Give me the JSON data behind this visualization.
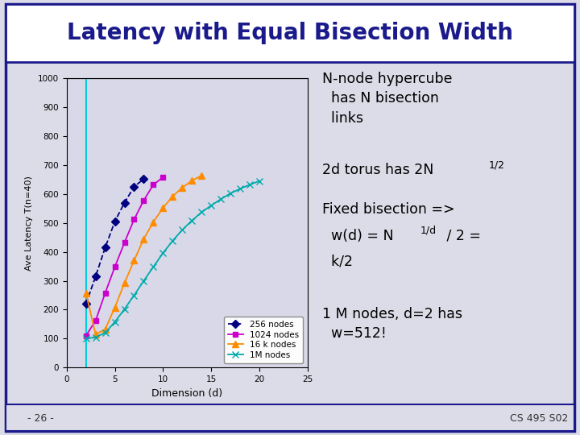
{
  "title": "Latency with Equal Bisection Width",
  "title_color": "#1a1a8c",
  "title_fontsize": 20,
  "bg_color": "#dcdce8",
  "plot_bg_color": "#d8d8e8",
  "border_color": "#1a1a8c",
  "xlabel": "Dimension (d)",
  "ylabel": "Ave Latency T(n=40)",
  "xlim": [
    0,
    25
  ],
  "ylim": [
    0,
    1000
  ],
  "yticks": [
    0,
    100,
    200,
    300,
    400,
    500,
    600,
    700,
    800,
    900,
    1000
  ],
  "xticks": [
    0,
    5,
    10,
    15,
    20,
    25
  ],
  "vline_x": 2,
  "vline_color": "#00ccdd",
  "hline_color": "#909090",
  "footer_left": "- 26 -",
  "footer_right": "CS 495 S02",
  "series": [
    {
      "label": "256 nodes",
      "d": [
        2,
        3,
        4,
        5,
        6,
        7,
        8
      ],
      "T": [
        220,
        315,
        415,
        505,
        570,
        625,
        652
      ],
      "color": "#000080",
      "marker": "D",
      "markersize": 5,
      "linestyle": "--",
      "linewidth": 1.3
    },
    {
      "label": "1024 nodes",
      "d": [
        2,
        3,
        4,
        5,
        6,
        7,
        8,
        9,
        10
      ],
      "T": [
        110,
        162,
        258,
        348,
        432,
        512,
        578,
        632,
        658
      ],
      "color": "#cc00cc",
      "marker": "s",
      "markersize": 5,
      "linestyle": "-",
      "linewidth": 1.3
    },
    {
      "label": "16 k nodes",
      "d": [
        2,
        3,
        4,
        5,
        6,
        7,
        8,
        9,
        10,
        11,
        12,
        13,
        14
      ],
      "T": [
        258,
        115,
        132,
        208,
        292,
        370,
        445,
        503,
        552,
        592,
        622,
        646,
        664
      ],
      "color": "#ff8c00",
      "marker": "^",
      "markersize": 6,
      "linestyle": "-",
      "linewidth": 1.3
    },
    {
      "label": "1M nodes",
      "d": [
        2,
        3,
        4,
        5,
        6,
        7,
        8,
        9,
        10,
        11,
        12,
        13,
        14,
        15,
        16,
        17,
        18,
        19,
        20
      ],
      "T": [
        100,
        105,
        120,
        158,
        202,
        250,
        300,
        348,
        396,
        438,
        476,
        508,
        537,
        560,
        582,
        602,
        618,
        632,
        645
      ],
      "color": "#00aaaa",
      "marker": "x",
      "markersize": 6,
      "linestyle": "-",
      "linewidth": 1.3
    }
  ]
}
